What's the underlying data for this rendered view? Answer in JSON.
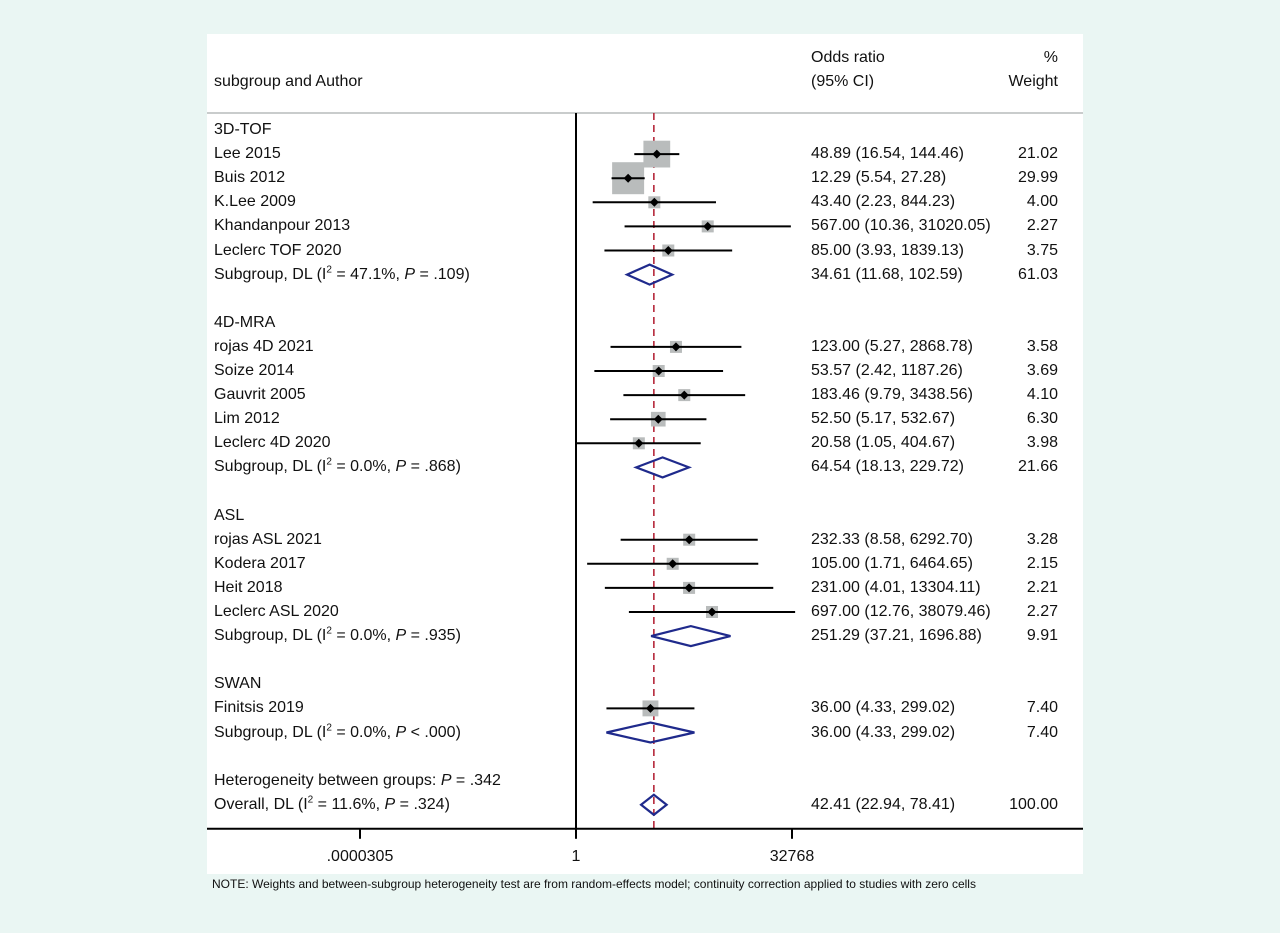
{
  "header": {
    "study_col": "subgroup and Author",
    "effect_col_line1": "Odds ratio",
    "effect_col_line2": "(95% CI)",
    "weight_col_line1": "%",
    "weight_col_line2": "Weight"
  },
  "note": "NOTE: Weights and between-subgroup heterogeneity test are from random-effects model; continuity correction applied to studies with zero cells",
  "colors": {
    "box": "#b9bcbc",
    "line": "#000000",
    "diamond": "#1f2a8c",
    "ref_line": "#b5273a",
    "background": "#eaf6f3"
  },
  "chart_data": {
    "type": "forest",
    "effect_measure": "Odds ratio",
    "x_scale": "log",
    "x_ticks": [
      {
        "value": 3.05e-05,
        "label": ".0000305"
      },
      {
        "value": 1,
        "label": "1"
      },
      {
        "value": 32768,
        "label": "32768"
      }
    ],
    "xlim": [
      3.05e-05,
      32768
    ],
    "null_value": 1,
    "overall_reference_line": 42.41,
    "subgroups": [
      {
        "name": "3D-TOF",
        "studies": [
          {
            "label": "Lee 2015",
            "or": 48.89,
            "lo": 16.54,
            "hi": 144.46,
            "text": "48.89 (16.54, 144.46)",
            "weight": 21.02,
            "weight_text": "21.02"
          },
          {
            "label": "Buis 2012",
            "or": 12.29,
            "lo": 5.54,
            "hi": 27.28,
            "text": "12.29 (5.54, 27.28)",
            "weight": 29.99,
            "weight_text": "29.99"
          },
          {
            "label": "K.Lee 2009",
            "or": 43.4,
            "lo": 2.23,
            "hi": 844.23,
            "text": "43.40 (2.23, 844.23)",
            "weight": 4.0,
            "weight_text": "4.00"
          },
          {
            "label": "Khandanpour 2013",
            "or": 567.0,
            "lo": 10.36,
            "hi": 31020.05,
            "text": "567.00 (10.36, 31020.05)",
            "weight": 2.27,
            "weight_text": "2.27"
          },
          {
            "label": "Leclerc TOF 2020",
            "or": 85.0,
            "lo": 3.93,
            "hi": 1839.13,
            "text": "85.00 (3.93, 1839.13)",
            "weight": 3.75,
            "weight_text": "3.75"
          }
        ],
        "summary": {
          "label_pre": "Subgroup, DL (I",
          "sup": "2",
          "label_mid": " = 47.1%, ",
          "p": "P",
          "label_post": " = .109)",
          "or": 34.61,
          "lo": 11.68,
          "hi": 102.59,
          "text": "34.61 (11.68, 102.59)",
          "weight_text": "61.03"
        }
      },
      {
        "name": "4D-MRA",
        "studies": [
          {
            "label": "rojas 4D 2021",
            "or": 123.0,
            "lo": 5.27,
            "hi": 2868.78,
            "text": "123.00 (5.27, 2868.78)",
            "weight": 3.58,
            "weight_text": "3.58"
          },
          {
            "label": "Soize 2014",
            "or": 53.57,
            "lo": 2.42,
            "hi": 1187.26,
            "text": "53.57 (2.42, 1187.26)",
            "weight": 3.69,
            "weight_text": "3.69"
          },
          {
            "label": "Gauvrit 2005",
            "or": 183.46,
            "lo": 9.79,
            "hi": 3438.56,
            "text": "183.46 (9.79, 3438.56)",
            "weight": 4.1,
            "weight_text": "4.10"
          },
          {
            "label": "Lim 2012",
            "or": 52.5,
            "lo": 5.17,
            "hi": 532.67,
            "text": "52.50 (5.17, 532.67)",
            "weight": 6.3,
            "weight_text": "6.30"
          },
          {
            "label": "Leclerc 4D 2020",
            "or": 20.58,
            "lo": 1.05,
            "hi": 404.67,
            "text": "20.58 (1.05, 404.67)",
            "weight": 3.98,
            "weight_text": "3.98"
          }
        ],
        "summary": {
          "label_pre": "Subgroup, DL (I",
          "sup": "2",
          "label_mid": " = 0.0%, ",
          "p": "P",
          "label_post": " = .868)",
          "or": 64.54,
          "lo": 18.13,
          "hi": 229.72,
          "text": "64.54 (18.13, 229.72)",
          "weight_text": "21.66"
        }
      },
      {
        "name": "ASL",
        "studies": [
          {
            "label": "rojas ASL 2021",
            "or": 232.33,
            "lo": 8.58,
            "hi": 6292.7,
            "text": "232.33 (8.58, 6292.70)",
            "weight": 3.28,
            "weight_text": "3.28"
          },
          {
            "label": "Kodera 2017",
            "or": 105.0,
            "lo": 1.71,
            "hi": 6464.65,
            "text": "105.00 (1.71, 6464.65)",
            "weight": 2.15,
            "weight_text": "2.15"
          },
          {
            "label": "Heit 2018",
            "or": 231.0,
            "lo": 4.01,
            "hi": 13304.11,
            "text": "231.00 (4.01, 13304.11)",
            "weight": 2.21,
            "weight_text": "2.21"
          },
          {
            "label": "Leclerc ASL 2020",
            "or": 697.0,
            "lo": 12.76,
            "hi": 38079.46,
            "text": "697.00 (12.76, 38079.46)",
            "weight": 2.27,
            "weight_text": "2.27"
          }
        ],
        "summary": {
          "label_pre": "Subgroup, DL (I",
          "sup": "2",
          "label_mid": " = 0.0%, ",
          "p": "P",
          "label_post": " = .935)",
          "or": 251.29,
          "lo": 37.21,
          "hi": 1696.88,
          "text": "251.29 (37.21, 1696.88)",
          "weight_text": "9.91"
        }
      },
      {
        "name": "SWAN",
        "studies": [
          {
            "label": "Finitsis 2019",
            "or": 36.0,
            "lo": 4.33,
            "hi": 299.02,
            "text": "36.00 (4.33, 299.02)",
            "weight": 7.4,
            "weight_text": "7.40"
          }
        ],
        "summary": {
          "label_pre": "Subgroup, DL (I",
          "sup": "2",
          "label_mid": " = 0.0%, ",
          "p": "P",
          "label_post": " < .000)",
          "or": 36.0,
          "lo": 4.33,
          "hi": 299.02,
          "text": "36.00 (4.33, 299.02)",
          "weight_text": "7.40"
        }
      }
    ],
    "heterogeneity": {
      "label_pre": "Heterogeneity between groups: ",
      "p": "P",
      "label_post": " = .342"
    },
    "overall": {
      "label_pre": "Overall, DL (I",
      "sup": "2",
      "label_mid": " = 11.6%, ",
      "p": "P",
      "label_post": " = .324)",
      "or": 42.41,
      "lo": 22.94,
      "hi": 78.41,
      "text": "42.41 (22.94, 78.41)",
      "weight_text": "100.00"
    }
  }
}
